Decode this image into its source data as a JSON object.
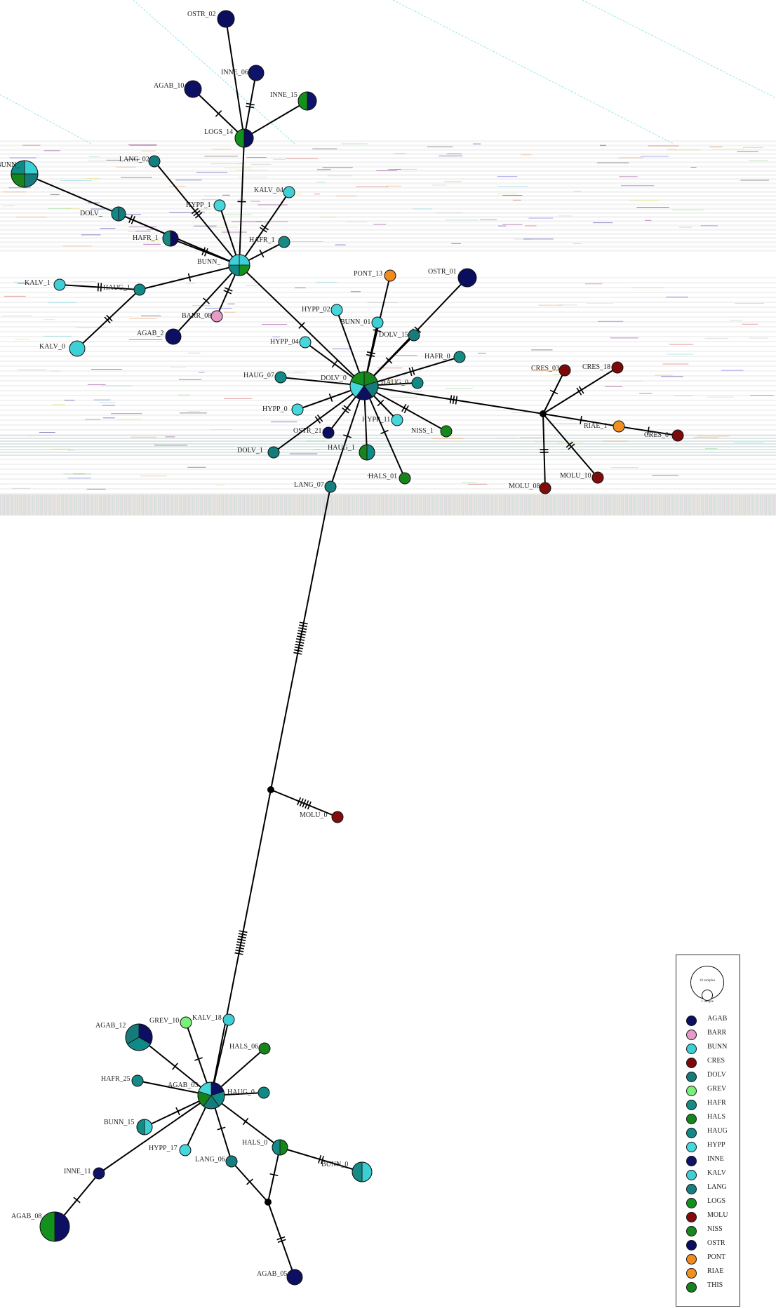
{
  "colors": {
    "AGAB": "#0d0f63",
    "BARR": "#e79cc8",
    "BUNN": "#3ccfd4",
    "CRES": "#7d0a0a",
    "DOLV": "#157b7b",
    "GREV": "#79f07a",
    "HAFR": "#168a84",
    "HALS": "#17841c",
    "HAUG": "#108a86",
    "HYPP": "#45d7dc",
    "INNE": "#0f1468",
    "KALV": "#3fcfd6",
    "LANG": "#157f80",
    "LOGS": "#14901d",
    "MOLU": "#820c0c",
    "NISS": "#16881d",
    "OSTR": "#0b0e5e",
    "PONT": "#f28a1e",
    "RIAE": "#f0901e",
    "THIS": "#16821b",
    "median": "#000000"
  },
  "legend": {
    "scale_big": "10 samples",
    "scale_small": "1 sample",
    "items": [
      "AGAB",
      "BARR",
      "BUNN",
      "CRES",
      "DOLV",
      "GREV",
      "HAFR",
      "HALS",
      "HAUG",
      "HYPP",
      "INNE",
      "KALV",
      "LANG",
      "LOGS",
      "MOLU",
      "NISS",
      "OSTR",
      "PONT",
      "RIAE",
      "THIS"
    ]
  },
  "nodes": [
    {
      "id": "OSTR_02",
      "label": "OSTR_02",
      "pop": [
        "OSTR"
      ]
    },
    {
      "id": "INNE_06",
      "label": "INNE_06",
      "pop": [
        "INNE"
      ]
    },
    {
      "id": "AGAB_10",
      "label": "AGAB_10",
      "pop": [
        "AGAB"
      ]
    },
    {
      "id": "INNE_15",
      "label": "INNE_15",
      "pop": [
        "INNE",
        "LOGS"
      ]
    },
    {
      "id": "LOGS_14",
      "label": "LOGS_14",
      "pop": [
        "OSTR",
        "LOGS"
      ]
    },
    {
      "id": "BUNN_x",
      "label": "BUNN_",
      "pop": [
        "BUNN",
        "DOLV",
        "HALS",
        "HAUG"
      ]
    },
    {
      "id": "LANG_02",
      "label": "LANG_02",
      "pop": [
        "LANG"
      ]
    },
    {
      "id": "DOLV_a",
      "label": "DOLV_",
      "pop": [
        "DOLV",
        "HAUG"
      ]
    },
    {
      "id": "HYPP_1",
      "label": "HYPP_1",
      "pop": [
        "HYPP"
      ]
    },
    {
      "id": "KALV_04",
      "label": "KALV_04",
      "pop": [
        "KALV"
      ]
    },
    {
      "id": "HAFR_1",
      "label": "HAFR_1",
      "pop": [
        "OSTR",
        "HAFR"
      ]
    },
    {
      "id": "HAFR_1b",
      "label": "HAFR_1",
      "pop": [
        "HAFR"
      ]
    },
    {
      "id": "BUNN_hub",
      "label": "BUNN_",
      "pop": [
        "BUNN",
        "LOGS",
        "HAUG",
        "KALV"
      ]
    },
    {
      "id": "KALV_1",
      "label": "KALV_1",
      "pop": [
        "KALV"
      ]
    },
    {
      "id": "HAUG_1",
      "label": "HAUG_1",
      "pop": [
        "HAUG"
      ]
    },
    {
      "id": "BARR_08",
      "label": "BARR_08",
      "pop": [
        "BARR"
      ]
    },
    {
      "id": "AGAB_2",
      "label": "AGAB_2",
      "pop": [
        "AGAB"
      ]
    },
    {
      "id": "KALV_0",
      "label": "KALV_0",
      "pop": [
        "KALV"
      ]
    },
    {
      "id": "PONT_13",
      "label": "PONT_13",
      "pop": [
        "PONT"
      ]
    },
    {
      "id": "OSTR_01",
      "label": "OSTR_01",
      "pop": [
        "OSTR"
      ]
    },
    {
      "id": "HYPP_02",
      "label": "HYPP_02",
      "pop": [
        "HYPP"
      ]
    },
    {
      "id": "BUNN_01",
      "label": "BUNN_01",
      "pop": [
        "BUNN"
      ]
    },
    {
      "id": "HYPP_04",
      "label": "HYPP_04",
      "pop": [
        "HYPP"
      ]
    },
    {
      "id": "DOLV_15",
      "label": "DOLV_15",
      "pop": [
        "DOLV"
      ]
    },
    {
      "id": "HAFR_0",
      "label": "HAFR_0",
      "pop": [
        "HAFR"
      ]
    },
    {
      "id": "HAUG_07",
      "label": "HAUG_07",
      "pop": [
        "HAUG"
      ]
    },
    {
      "id": "DOLV_hub",
      "label": "DOLV_0",
      "pop": [
        "HALS",
        "DOLV",
        "AGAB",
        "HYPP",
        "LOGS"
      ]
    },
    {
      "id": "HAUG_0",
      "label": "HAUG_0",
      "pop": [
        "HAUG"
      ]
    },
    {
      "id": "HYPP_0",
      "label": "HYPP_0",
      "pop": [
        "HYPP"
      ]
    },
    {
      "id": "OSTR_21",
      "label": "OSTR_21",
      "pop": [
        "OSTR"
      ]
    },
    {
      "id": "HYPP_11",
      "label": "HYPP_11",
      "pop": [
        "HYPP"
      ]
    },
    {
      "id": "NISS_1",
      "label": "NISS_1",
      "pop": [
        "NISS"
      ]
    },
    {
      "id": "DOLV_1",
      "label": "DOLV_1",
      "pop": [
        "DOLV"
      ]
    },
    {
      "id": "HAUG_1b",
      "label": "HAUG_1",
      "pop": [
        "HAUG",
        "HALS"
      ]
    },
    {
      "id": "HALS_01",
      "label": "HALS_01",
      "pop": [
        "HALS"
      ]
    },
    {
      "id": "LANG_07",
      "label": "LANG_07",
      "pop": [
        "LANG"
      ]
    },
    {
      "id": "CRES_03",
      "label": "CRES_03",
      "pop": [
        "CRES"
      ]
    },
    {
      "id": "CRES_18",
      "label": "CRES_18",
      "pop": [
        "CRES"
      ]
    },
    {
      "id": "RIAE_1",
      "label": "RIAE_1",
      "pop": [
        "RIAE"
      ]
    },
    {
      "id": "CRES_0",
      "label": "CRES_0",
      "pop": [
        "CRES"
      ]
    },
    {
      "id": "MOLU_08",
      "label": "MOLU_08",
      "pop": [
        "MOLU"
      ]
    },
    {
      "id": "MOLU_10",
      "label": "MOLU_10",
      "pop": [
        "MOLU"
      ]
    },
    {
      "id": "MOLU_0",
      "label": "MOLU_0",
      "pop": [
        "MOLU"
      ]
    },
    {
      "id": "AGAB_12",
      "label": "AGAB_12",
      "pop": [
        "AGAB",
        "HAUG",
        "DOLV"
      ]
    },
    {
      "id": "GREV_10",
      "label": "GREV_10",
      "pop": [
        "GREV"
      ]
    },
    {
      "id": "KALV_18",
      "label": "KALV_18",
      "pop": [
        "KALV"
      ]
    },
    {
      "id": "HALS_06",
      "label": "HALS_06",
      "pop": [
        "HALS"
      ]
    },
    {
      "id": "HAFR_25",
      "label": "HAFR_25",
      "pop": [
        "HAFR"
      ]
    },
    {
      "id": "AGAB_03",
      "label": "AGAB_03",
      "pop": [
        "AGAB",
        "HAUG",
        "DOLV",
        "THIS",
        "HYPP"
      ]
    },
    {
      "id": "HAUG_0c",
      "label": "HAUG_0",
      "pop": [
        "HAUG"
      ]
    },
    {
      "id": "BUNN_15",
      "label": "BUNN_15",
      "pop": [
        "BUNN",
        "HAFR"
      ]
    },
    {
      "id": "HYPP_17",
      "label": "HYPP_17",
      "pop": [
        "HYPP"
      ]
    },
    {
      "id": "LANG_06",
      "label": "LANG_06",
      "pop": [
        "LANG"
      ]
    },
    {
      "id": "HALS_0",
      "label": "HALS_0",
      "pop": [
        "HALS",
        "HAUG"
      ]
    },
    {
      "id": "BUNN_0",
      "label": "BUNN_0",
      "pop": [
        "BUNN",
        "HAFR"
      ]
    },
    {
      "id": "INNE_11",
      "label": "INNE_11",
      "pop": [
        "INNE"
      ]
    },
    {
      "id": "AGAB_08",
      "label": "AGAB_08",
      "pop": [
        "AGAB",
        "LOGS"
      ]
    },
    {
      "id": "AGAB_05",
      "label": "AGAB_05",
      "pop": [
        "AGAB"
      ]
    }
  ]
}
